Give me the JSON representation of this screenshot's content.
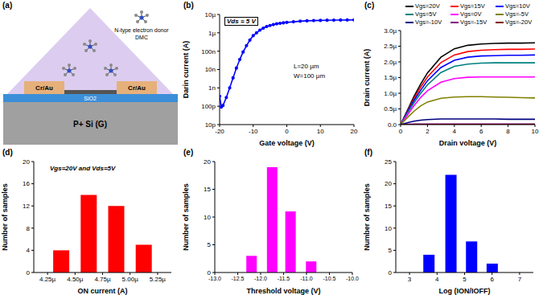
{
  "schematic": {
    "title": "(a)",
    "donor_label": [
      "N-type electron donor",
      "DMC"
    ],
    "electrodes": [
      "Cr/Au",
      "Cr/Au"
    ],
    "dielectric": "SiO2",
    "gate": "P+ Si (G)"
  },
  "chart_data": [
    {
      "type": "line",
      "title": "(b)",
      "x_label": "Gate voltage (V)",
      "y_label": "Darin current (A)",
      "log": "y",
      "annotations": [
        "Vds = 5 V",
        "L=20 µm",
        "W=100 µm"
      ],
      "xlim": [
        -20,
        20
      ],
      "xticks": [
        -20,
        -10,
        0,
        10,
        20
      ],
      "ylim": [
        1e-11,
        1e-05
      ],
      "yticks": [
        {
          "value": 1e-11,
          "label": "10p"
        },
        {
          "value": 1e-10,
          "label": "100p"
        },
        {
          "value": 1e-09,
          "label": "1n"
        },
        {
          "value": 1e-08,
          "label": "10n"
        },
        {
          "value": 1e-07,
          "label": "100n"
        },
        {
          "value": 1e-06,
          "label": "1µ"
        },
        {
          "value": 1e-05,
          "label": "10µ"
        }
      ],
      "x": [
        -20,
        -19.5,
        -19,
        -18,
        -17,
        -16,
        -15,
        -14,
        -13,
        -12,
        -11,
        -10,
        -9,
        -8,
        -7,
        -6,
        -5,
        -4,
        -3,
        -2,
        -1,
        0,
        2,
        4,
        6,
        8,
        10,
        12,
        14,
        16,
        18,
        20
      ],
      "values": [
        3.5e-10,
        9e-11,
        1.1e-10,
        3e-10,
        1e-09,
        3.5e-09,
        1.2e-08,
        3.5e-08,
        9e-08,
        2e-07,
        4e-07,
        7e-07,
        1e-06,
        1.4e-06,
        1.8e-06,
        2.2e-06,
        2.5e-06,
        2.8e-06,
        3.1e-06,
        3.3e-06,
        3.5e-06,
        3.7e-06,
        4e-06,
        4.3e-06,
        4.5e-06,
        4.65e-06,
        4.75e-06,
        4.85e-06,
        4.9e-06,
        4.95e-06,
        5e-06,
        5.05e-06
      ],
      "color": "#0000ff",
      "marker": "circle"
    },
    {
      "type": "line",
      "title": "(c)",
      "x_label": "Drain voltage (V)",
      "y_label": "Drain current (A)",
      "legend": "top",
      "xlim": [
        0,
        10
      ],
      "xticks": [
        0,
        2,
        4,
        6,
        8,
        10
      ],
      "ylim": [
        0,
        3e-06
      ],
      "yticks": [
        {
          "value": 0,
          "label": "0.0"
        },
        {
          "value": 5e-07,
          "label": "0.5µ"
        },
        {
          "value": 1e-06,
          "label": "1.0µ"
        },
        {
          "value": 1.5e-06,
          "label": "1.5µ"
        },
        {
          "value": 2e-06,
          "label": "2.0µ"
        },
        {
          "value": 2.5e-06,
          "label": "2.5µ"
        },
        {
          "value": 3e-06,
          "label": "3.0µ"
        }
      ],
      "x": [
        0,
        0.5,
        1,
        1.5,
        2,
        3,
        4,
        5,
        6,
        7,
        8,
        9,
        10
      ],
      "series": [
        {
          "name": "Vgs=20V",
          "color": "#000000",
          "values": [
            0,
            4.5e-07,
            9e-07,
            1.3e-06,
            1.65e-06,
            2.15e-06,
            2.42e-06,
            2.53e-06,
            2.57e-06,
            2.59e-06,
            2.6e-06,
            2.6e-06,
            2.61e-06
          ]
        },
        {
          "name": "Vgs=15V",
          "color": "#ff0000",
          "values": [
            0,
            4.2e-07,
            8.3e-07,
            1.2e-06,
            1.52e-06,
            1.98e-06,
            2.22e-06,
            2.33e-06,
            2.37e-06,
            2.39e-06,
            2.4e-06,
            2.4e-06,
            2.41e-06
          ]
        },
        {
          "name": "Vgs=10V",
          "color": "#0000ff",
          "values": [
            0,
            4e-07,
            7.7e-07,
            1.1e-06,
            1.4e-06,
            1.82e-06,
            2.05e-06,
            2.15e-06,
            2.19e-06,
            2.2e-06,
            2.21e-06,
            2.21e-06,
            2.22e-06
          ]
        },
        {
          "name": "Vgs=5V",
          "color": "#008080",
          "values": [
            0,
            3.6e-07,
            7e-07,
            1e-06,
            1.27e-06,
            1.66e-06,
            1.86e-06,
            1.93e-06,
            1.96e-06,
            1.97e-06,
            1.97e-06,
            1.97e-06,
            1.97e-06
          ]
        },
        {
          "name": "Vgs=0V",
          "color": "#ff00ff",
          "values": [
            0,
            3e-07,
            6e-07,
            8.7e-07,
            1.08e-06,
            1.35e-06,
            1.47e-06,
            1.51e-06,
            1.52e-06,
            1.52e-06,
            1.52e-06,
            1.52e-06,
            1.52e-06
          ]
        },
        {
          "name": "Vgs=-5V",
          "color": "#808000",
          "values": [
            0,
            2.2e-07,
            4.3e-07,
            6e-07,
            7.2e-07,
            8.4e-07,
            8.8e-07,
            8.9e-07,
            8.9e-07,
            8.8e-07,
            8.7e-07,
            8.6e-07,
            8.5e-07
          ]
        },
        {
          "name": "Vgs=-10V",
          "color": "#000080",
          "values": [
            0,
            6e-08,
            1.1e-07,
            1.4e-07,
            1.6e-07,
            1.8e-07,
            1.8e-07,
            1.8e-07,
            1.8e-07,
            1.8e-07,
            1.7e-07,
            1.7e-07,
            1.7e-07
          ]
        },
        {
          "name": "Vgs=-15V",
          "color": "#800080",
          "values": [
            0,
            1e-08,
            2e-08,
            2e-08,
            2e-08,
            2e-08,
            2e-08,
            2e-08,
            2e-08,
            2e-08,
            2e-08,
            2e-08,
            2e-08
          ]
        },
        {
          "name": "Vgs=-20V",
          "color": "#800000",
          "values": [
            0,
            0,
            0,
            0,
            0,
            0,
            0,
            0,
            0,
            0,
            0,
            0,
            5e-09
          ]
        }
      ]
    },
    {
      "type": "bar",
      "title": "(d)",
      "x_label": "ON current (A)",
      "y_label": "Number of samples",
      "annotations": [
        "Vgs=20V and Vds=5V"
      ],
      "xlim": [
        4.125e-06,
        5.375e-06
      ],
      "xticks": [
        {
          "value": 4.25e-06,
          "label": "4.25µ"
        },
        {
          "value": 4.5e-06,
          "label": "4.50µ"
        },
        {
          "value": 4.75e-06,
          "label": "4.75µ"
        },
        {
          "value": 5e-06,
          "label": "5.00µ"
        },
        {
          "value": 5.25e-06,
          "label": "5.25µ"
        }
      ],
      "ylim": [
        0,
        20
      ],
      "yticks": [
        0,
        4,
        8,
        12,
        16,
        20
      ],
      "x": [
        4.375e-06,
        4.625e-06,
        4.875e-06,
        5.125e-06
      ],
      "values": [
        4,
        14,
        12,
        5
      ],
      "color": "#ff0000"
    },
    {
      "type": "bar",
      "title": "(e)",
      "x_label": "Threshold voltage (V)",
      "y_label": "Number of samples",
      "xlim": [
        -13,
        -10
      ],
      "xticks": [
        {
          "value": -13,
          "label": "-13.0"
        },
        -12.5,
        {
          "value": -12,
          "label": "-12.0"
        },
        -11.5,
        {
          "value": -11,
          "label": "-11.0"
        },
        -10.5,
        {
          "value": -10,
          "label": "-10.0"
        }
      ],
      "ylim": [
        0,
        20
      ],
      "yticks": [
        0,
        5,
        10,
        15,
        20
      ],
      "x": [
        -12.2,
        -11.75,
        -11.35,
        -10.9
      ],
      "values": [
        3,
        19,
        11,
        2
      ],
      "color": "#ff00ff"
    },
    {
      "type": "bar",
      "title": "(f)",
      "x_label": "Log (ION/IOFF)",
      "y_label": "Number of samples",
      "xlim": [
        2.5,
        7.5
      ],
      "xticks": [
        3,
        4,
        5,
        6,
        7
      ],
      "ylim": [
        0,
        25
      ],
      "yticks": [
        0,
        5,
        10,
        15,
        20,
        25
      ],
      "x": [
        3.7,
        4.5,
        5.25,
        6.0
      ],
      "values": [
        4,
        22,
        7,
        2
      ],
      "color": "#0000ff"
    }
  ]
}
